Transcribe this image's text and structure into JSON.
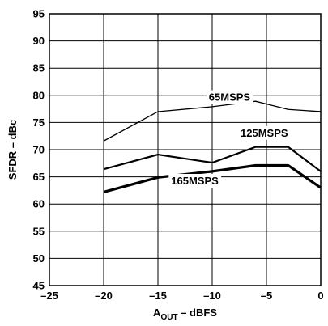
{
  "chart_data": {
    "type": "line",
    "xlabel_main": "A",
    "xlabel_sub": "OUT",
    "xlabel_rest": " – dBFS",
    "ylabel": "SFDR – dBc",
    "xlim": [
      -25,
      0
    ],
    "ylim": [
      45,
      95
    ],
    "xticks": [
      -25,
      -20,
      -15,
      -10,
      -5,
      0
    ],
    "yticks": [
      45,
      50,
      55,
      60,
      65,
      70,
      75,
      80,
      85,
      90,
      95
    ],
    "xtick_labels": [
      "–25",
      "–20",
      "–15",
      "–10",
      "–5",
      "0"
    ],
    "ytick_labels": [
      "45",
      "50",
      "55",
      "60",
      "65",
      "70",
      "75",
      "80",
      "85",
      "90",
      "95"
    ],
    "grid": true,
    "series": [
      {
        "name": "65MSPS",
        "x": [
          -20,
          -15,
          -10,
          -6,
          -3,
          0
        ],
        "y": [
          71.6,
          77.0,
          77.9,
          78.9,
          77.4,
          77.0
        ],
        "weight": "thin"
      },
      {
        "name": "125MSPS",
        "x": [
          -20,
          -15,
          -10,
          -6,
          -3,
          0
        ],
        "y": [
          66.4,
          69.1,
          67.6,
          70.5,
          70.5,
          66.0
        ],
        "weight": "medium"
      },
      {
        "name": "165MSPS",
        "x": [
          -20,
          -15,
          -10,
          -6,
          -3,
          0
        ],
        "y": [
          62.2,
          64.9,
          66.0,
          67.1,
          67.1,
          63.0
        ],
        "weight": "thick"
      }
    ]
  }
}
